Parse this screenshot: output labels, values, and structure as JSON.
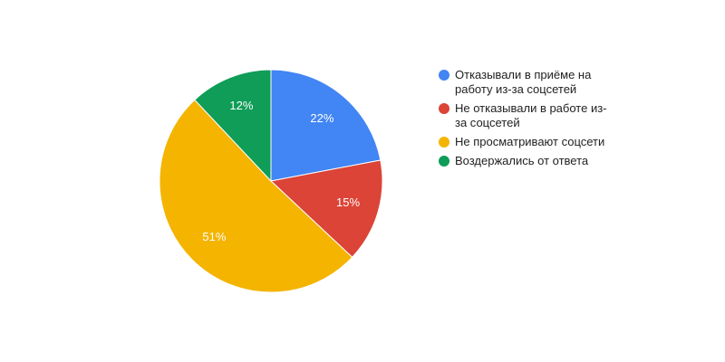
{
  "chart_data": {
    "type": "pie",
    "categories": [
      "Отказывали в приёме на работу из-за соцсетей",
      "Не отказывали в работе из-за соцсетей",
      "Не просматривают соцсети",
      "Воздержались от ответа"
    ],
    "values": [
      22,
      15,
      51,
      12
    ],
    "value_labels": [
      "22%",
      "15%",
      "51%",
      "12%"
    ],
    "colors": [
      "#4285f4",
      "#db4437",
      "#f4b400",
      "#0f9d58"
    ],
    "legend": "right"
  }
}
